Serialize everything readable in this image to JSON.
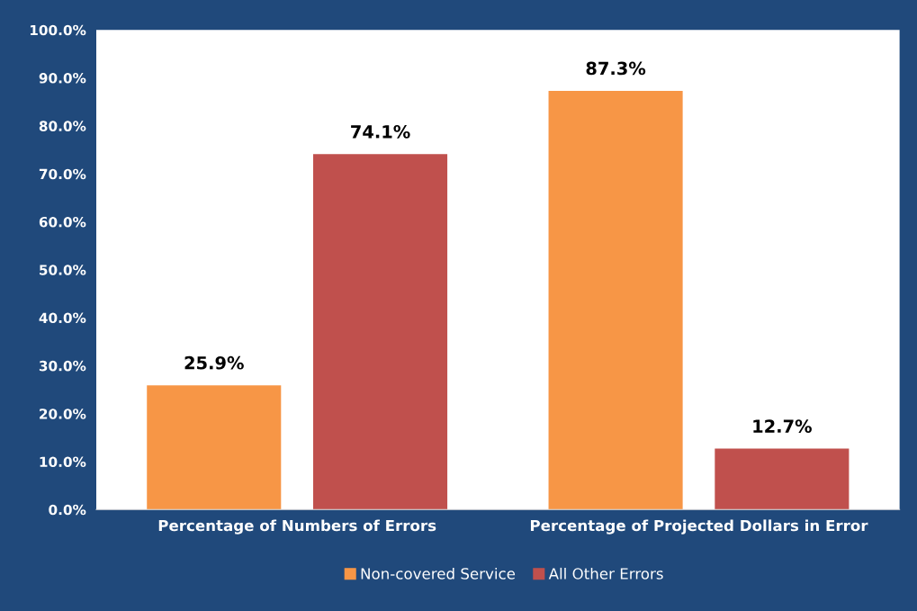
{
  "chart_data": {
    "type": "bar",
    "categories": [
      "Percentage of Numbers of Errors",
      "Percentage of Projected Dollars in Error"
    ],
    "series": [
      {
        "name": "Non-covered Service",
        "color": "#f79646",
        "values": [
          25.9,
          87.3
        ]
      },
      {
        "name": "All Other Errors",
        "color": "#c0504d",
        "values": [
          74.1,
          12.7
        ]
      }
    ],
    "ylim": [
      0,
      100
    ],
    "yticks": [
      {
        "value": 0,
        "label": "0.0%"
      },
      {
        "value": 10,
        "label": "10.0%"
      },
      {
        "value": 20,
        "label": "20.0%"
      },
      {
        "value": 30,
        "label": "30.0%"
      },
      {
        "value": 40,
        "label": "40.0%"
      },
      {
        "value": 50,
        "label": "50.0%"
      },
      {
        "value": 60,
        "label": "60.0%"
      },
      {
        "value": 70,
        "label": "70.0%"
      },
      {
        "value": 80,
        "label": "80.0%"
      },
      {
        "value": 90,
        "label": "90.0%"
      },
      {
        "value": 100,
        "label": "100.0%"
      }
    ],
    "value_labels": [
      [
        "25.9%",
        "87.3%"
      ],
      [
        "74.1%",
        "12.7%"
      ]
    ],
    "grid": false,
    "legend": "bottom"
  }
}
